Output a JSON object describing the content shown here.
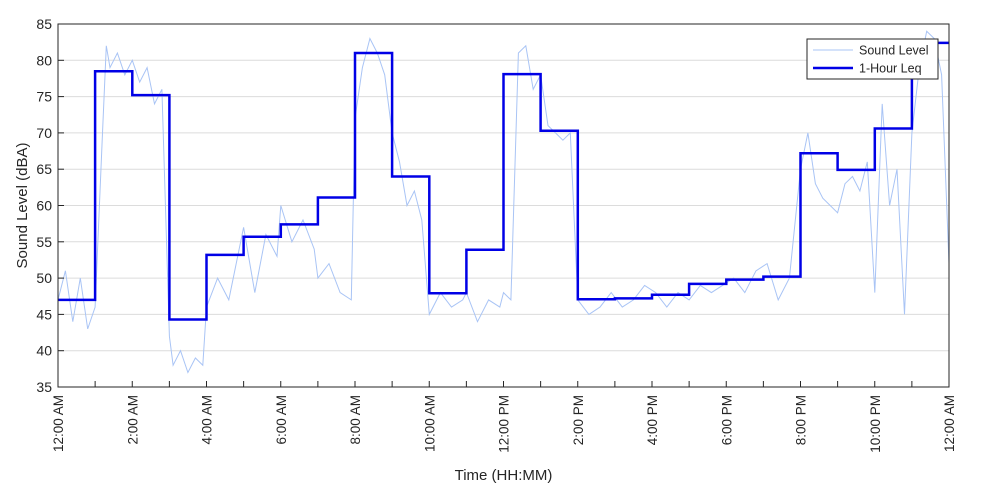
{
  "chart_data": {
    "type": "line",
    "xlabel": "Time (HH:MM)",
    "ylabel": "Sound Level (dBA)",
    "ylim": [
      35,
      85
    ],
    "xlim": [
      0,
      24
    ],
    "x_unit": "hours after 12:00 AM",
    "x_ticks": [
      0,
      2,
      4,
      6,
      8,
      10,
      12,
      14,
      16,
      18,
      20,
      22,
      24
    ],
    "x_tick_labels": [
      "12:00 AM",
      "2:00 AM",
      "4:00 AM",
      "6:00 AM",
      "8:00 AM",
      "10:00 AM",
      "12:00 PM",
      "2:00 PM",
      "4:00 PM",
      "6:00 PM",
      "8:00 PM",
      "10:00 PM",
      "12:00 AM"
    ],
    "y_ticks": [
      35,
      40,
      45,
      50,
      55,
      60,
      65,
      70,
      75,
      80,
      85
    ],
    "grid": "horizontal",
    "legend_position": "top-right",
    "series": [
      {
        "name": "Sound Level",
        "style": "thin-line",
        "color": "#a9c4f5",
        "x": [
          0,
          0.2,
          0.4,
          0.6,
          0.8,
          1.0,
          1.2,
          1.3,
          1.4,
          1.6,
          1.8,
          2.0,
          2.2,
          2.4,
          2.6,
          2.8,
          3.0,
          3.1,
          3.3,
          3.5,
          3.7,
          3.9,
          4.0,
          4.3,
          4.6,
          4.8,
          5.0,
          5.3,
          5.6,
          5.9,
          6.0,
          6.3,
          6.6,
          6.9,
          7.0,
          7.3,
          7.6,
          7.9,
          8.0,
          8.2,
          8.4,
          8.6,
          8.8,
          9.0,
          9.2,
          9.4,
          9.6,
          9.8,
          10.0,
          10.3,
          10.6,
          10.9,
          11.0,
          11.3,
          11.6,
          11.9,
          12.0,
          12.2,
          12.4,
          12.6,
          12.8,
          13.0,
          13.2,
          13.4,
          13.6,
          13.8,
          14.0,
          14.3,
          14.6,
          14.9,
          15.2,
          15.5,
          15.8,
          16.1,
          16.4,
          16.7,
          17.0,
          17.3,
          17.6,
          17.9,
          18.2,
          18.5,
          18.8,
          19.1,
          19.4,
          19.7,
          20.0,
          20.2,
          20.4,
          20.6,
          20.8,
          21.0,
          21.2,
          21.4,
          21.6,
          21.8,
          22.0,
          22.2,
          22.4,
          22.6,
          22.8,
          23.0,
          23.2,
          23.4,
          23.6,
          23.8,
          24.0
        ],
        "y": [
          47,
          51,
          44,
          50,
          43,
          46,
          70,
          82,
          79,
          81,
          78,
          80,
          77,
          79,
          74,
          76,
          42,
          38,
          40,
          37,
          39,
          38,
          46,
          50,
          47,
          52,
          57,
          48,
          56,
          53,
          60,
          55,
          58,
          54,
          50,
          52,
          48,
          47,
          72,
          79,
          83,
          81,
          78,
          70,
          66,
          60,
          62,
          58,
          45,
          48,
          46,
          47,
          48,
          44,
          47,
          46,
          48,
          47,
          81,
          82,
          76,
          78,
          71,
          70,
          69,
          70,
          47,
          45,
          46,
          48,
          46,
          47,
          49,
          48,
          46,
          48,
          47,
          49,
          48,
          49,
          50,
          48,
          51,
          52,
          47,
          50,
          65,
          70,
          63,
          61,
          60,
          59,
          63,
          64,
          62,
          66,
          48,
          74,
          60,
          65,
          45,
          70,
          79,
          84,
          83,
          78,
          52
        ]
      },
      {
        "name": "1-Hour Leq",
        "style": "step",
        "color": "#0000e6",
        "hour_start": [
          0,
          1,
          2,
          3,
          4,
          5,
          6,
          7,
          8,
          9,
          10,
          11,
          12,
          13,
          14,
          15,
          16,
          17,
          18,
          19,
          20,
          21,
          22,
          23
        ],
        "values": [
          47.0,
          78.5,
          75.2,
          44.3,
          53.2,
          55.7,
          57.4,
          61.1,
          81.0,
          64.0,
          47.9,
          53.9,
          78.1,
          70.3,
          47.1,
          47.2,
          47.7,
          49.2,
          49.8,
          50.2,
          67.2,
          64.9,
          70.6,
          82.4
        ]
      }
    ]
  }
}
